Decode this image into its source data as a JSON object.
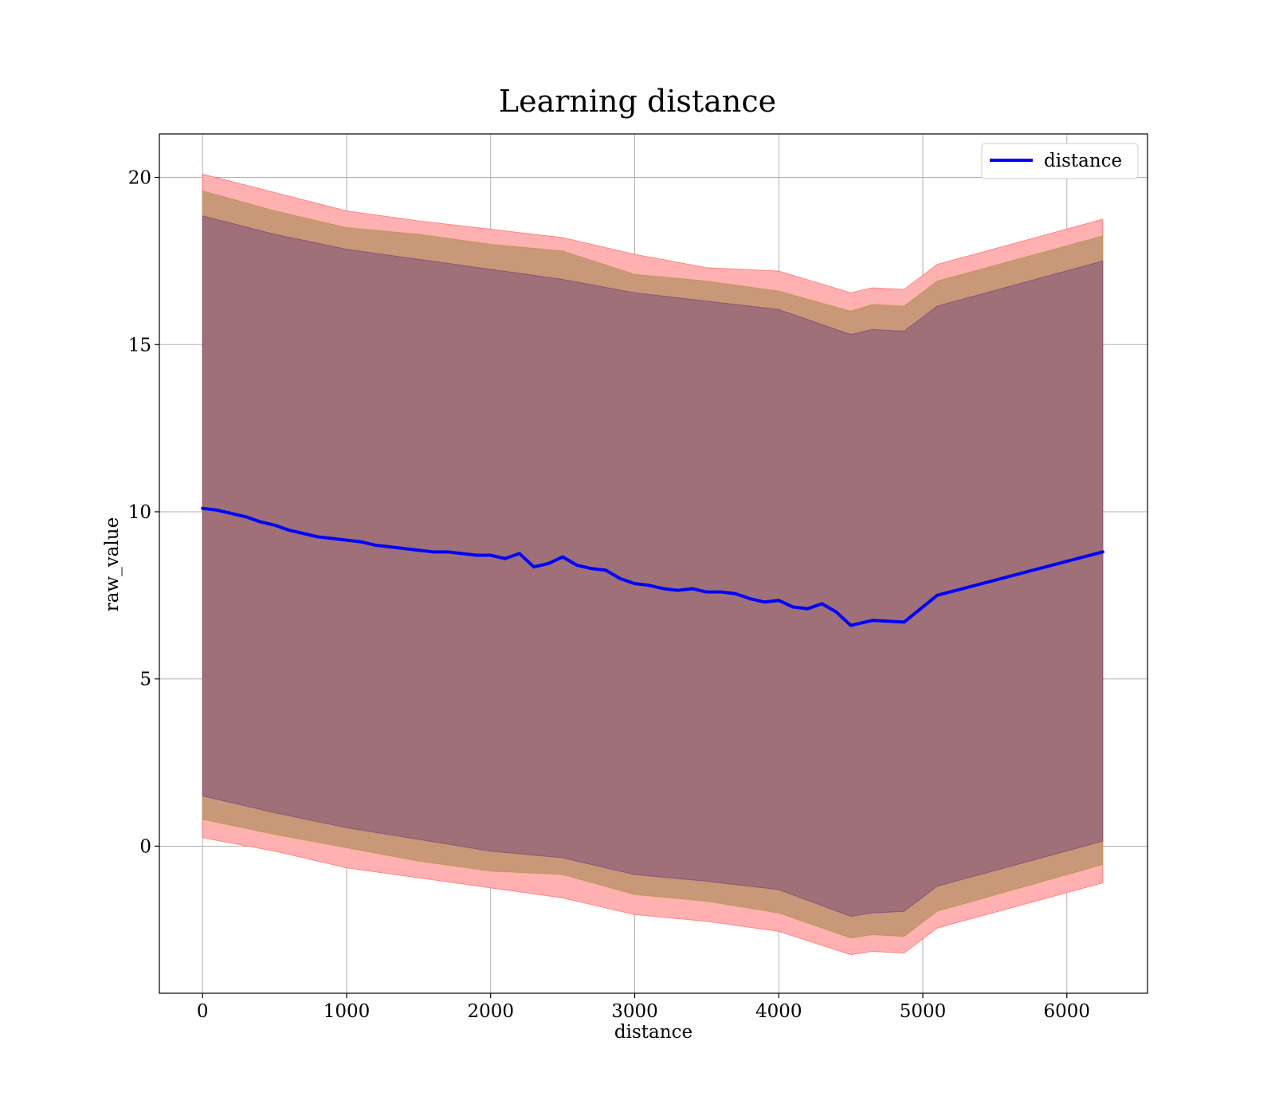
{
  "chart_data": {
    "type": "line",
    "title": "Learning distance",
    "xlabel": "distance",
    "ylabel": "raw_value",
    "xlim": [
      -300,
      6560
    ],
    "ylim": [
      -4.4,
      21.3
    ],
    "xticks": [
      0,
      1000,
      2000,
      3000,
      4000,
      5000,
      6000
    ],
    "xtick_labels": [
      "0",
      "1000",
      "2000",
      "3000",
      "4000",
      "5000",
      "6000"
    ],
    "yticks": [
      0,
      5,
      10,
      15,
      20
    ],
    "ytick_labels": [
      "0",
      "5",
      "10",
      "15",
      "20"
    ],
    "grid": true,
    "legend": {
      "position": "top-right",
      "entries": [
        "distance"
      ]
    },
    "colors": {
      "line": "#0000ff",
      "band_outer": "#ff0000",
      "band_mid": "#8b8b00",
      "band_inner": "#4b0082",
      "fill_base": "#ffb0b0",
      "fill_mid": "#c89878",
      "fill_inner": "#a07078"
    },
    "series": [
      {
        "name": "distance",
        "x": [
          0,
          100,
          200,
          300,
          400,
          500,
          600,
          700,
          800,
          900,
          1000,
          1100,
          1200,
          1300,
          1400,
          1500,
          1600,
          1700,
          1800,
          1900,
          2000,
          2100,
          2200,
          2300,
          2400,
          2500,
          2600,
          2700,
          2800,
          2900,
          3000,
          3100,
          3200,
          3300,
          3400,
          3500,
          3600,
          3700,
          3800,
          3900,
          4000,
          4100,
          4200,
          4300,
          4400,
          4500,
          4650,
          4870,
          5100,
          6250
        ],
        "y": [
          10.1,
          10.05,
          9.95,
          9.85,
          9.7,
          9.6,
          9.45,
          9.35,
          9.25,
          9.2,
          9.15,
          9.1,
          9.0,
          8.95,
          8.9,
          8.85,
          8.8,
          8.8,
          8.75,
          8.7,
          8.7,
          8.6,
          8.75,
          8.35,
          8.45,
          8.65,
          8.4,
          8.3,
          8.25,
          8.0,
          7.85,
          7.8,
          7.7,
          7.65,
          7.7,
          7.6,
          7.6,
          7.55,
          7.4,
          7.3,
          7.35,
          7.15,
          7.1,
          7.25,
          7.0,
          6.6,
          6.75,
          6.7,
          7.5,
          8.8
        ]
      }
    ],
    "bands": [
      {
        "x": [
          0,
          500,
          1000,
          1500,
          2000,
          2500,
          3000,
          3500,
          4000,
          4500,
          4650,
          4870,
          5100,
          6250
        ],
        "lower": [
          0.25,
          -0.15,
          -0.65,
          -0.95,
          -1.25,
          -1.55,
          -2.05,
          -2.25,
          -2.55,
          -3.25,
          -3.15,
          -3.2,
          -2.45,
          -1.1
        ],
        "upper": [
          20.1,
          19.55,
          19.0,
          18.7,
          18.45,
          18.2,
          17.7,
          17.3,
          17.2,
          16.55,
          16.7,
          16.65,
          17.4,
          18.75
        ]
      },
      {
        "x": [
          0,
          500,
          1000,
          1500,
          2000,
          2500,
          3000,
          3500,
          4000,
          4500,
          4650,
          4870,
          5100,
          6250
        ],
        "lower": [
          0.8,
          0.35,
          -0.05,
          -0.45,
          -0.75,
          -0.85,
          -1.45,
          -1.65,
          -2.0,
          -2.75,
          -2.65,
          -2.7,
          -1.95,
          -0.55
        ],
        "upper": [
          19.6,
          19.0,
          18.5,
          18.3,
          18.0,
          17.8,
          17.1,
          16.9,
          16.6,
          16.0,
          16.2,
          16.15,
          16.9,
          18.25
        ]
      },
      {
        "x": [
          0,
          500,
          1000,
          1500,
          2000,
          2500,
          3000,
          3500,
          4000,
          4500,
          4650,
          4870,
          5100,
          6250
        ],
        "lower": [
          1.5,
          1.0,
          0.55,
          0.2,
          -0.15,
          -0.35,
          -0.85,
          -1.05,
          -1.3,
          -2.1,
          -2.0,
          -1.95,
          -1.2,
          0.15
        ],
        "upper": [
          18.85,
          18.3,
          17.85,
          17.55,
          17.25,
          16.95,
          16.55,
          16.3,
          16.05,
          15.3,
          15.45,
          15.4,
          16.15,
          17.5
        ]
      }
    ]
  }
}
